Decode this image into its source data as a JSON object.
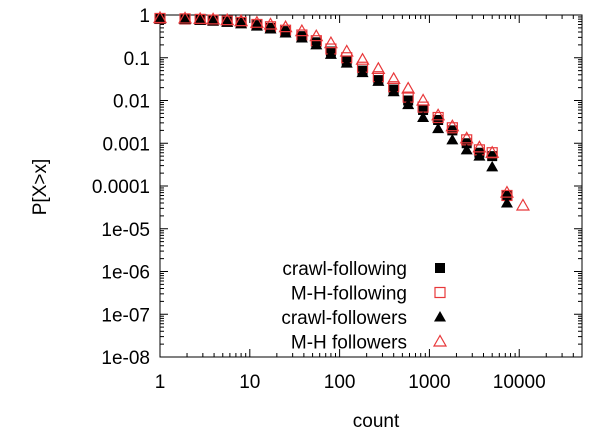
{
  "chart_data": {
    "type": "scatter",
    "xlabel": "count",
    "ylabel": "P[X>x]",
    "x_scale": "log",
    "y_scale": "log",
    "xlim": [
      1,
      50000
    ],
    "ylim": [
      1e-08,
      1
    ],
    "x_ticks": [
      {
        "value": 1,
        "label": "1"
      },
      {
        "value": 10,
        "label": "10"
      },
      {
        "value": 100,
        "label": "100"
      },
      {
        "value": 1000,
        "label": "1000"
      },
      {
        "value": 10000,
        "label": "10000"
      }
    ],
    "y_ticks": [
      {
        "value": 1,
        "label": "1"
      },
      {
        "value": 0.1,
        "label": "0.1"
      },
      {
        "value": 0.01,
        "label": "0.01"
      },
      {
        "value": 0.001,
        "label": "0.001"
      },
      {
        "value": 0.0001,
        "label": "0.0001"
      },
      {
        "value": 1e-05,
        "label": "1e-05"
      },
      {
        "value": 1e-06,
        "label": "1e-06"
      },
      {
        "value": 1e-07,
        "label": "1e-07"
      },
      {
        "value": 1e-08,
        "label": "1e-08"
      }
    ],
    "legend_position": "bottom-right",
    "series": [
      {
        "name": "crawl-following",
        "marker": "filled-square",
        "color": "#000000",
        "x": [
          1,
          1.9,
          2.8,
          3.9,
          5.6,
          8,
          12,
          17,
          25,
          38,
          55,
          80,
          120,
          180,
          270,
          400,
          580,
          850,
          1250,
          1800,
          2600,
          3600,
          5000,
          7300
        ],
        "y": [
          0.82,
          0.8,
          0.77,
          0.74,
          0.7,
          0.65,
          0.58,
          0.5,
          0.42,
          0.32,
          0.23,
          0.14,
          0.085,
          0.05,
          0.03,
          0.018,
          0.01,
          0.006,
          0.0035,
          0.002,
          0.001,
          0.0006,
          0.0005,
          6e-05
        ]
      },
      {
        "name": "M-H-following",
        "marker": "open-square",
        "color": "#e8383a",
        "x": [
          1,
          1.9,
          2.8,
          3.9,
          5.6,
          8,
          12,
          17,
          25,
          38,
          55,
          80,
          120,
          180,
          270,
          400,
          580,
          850,
          1250,
          1800,
          2600,
          3600,
          5000,
          7300
        ],
        "y": [
          0.83,
          0.81,
          0.79,
          0.76,
          0.72,
          0.67,
          0.6,
          0.53,
          0.44,
          0.34,
          0.25,
          0.16,
          0.1,
          0.06,
          0.036,
          0.021,
          0.012,
          0.007,
          0.004,
          0.0023,
          0.0012,
          0.0007,
          0.0006,
          6e-05
        ]
      },
      {
        "name": "crawl-followers",
        "marker": "filled-triangle",
        "color": "#000000",
        "x": [
          1,
          1.9,
          2.8,
          3.9,
          5.6,
          8,
          12,
          17,
          25,
          38,
          55,
          80,
          120,
          180,
          270,
          400,
          580,
          850,
          1250,
          1800,
          2600,
          3600,
          5000,
          7300
        ],
        "y": [
          0.8,
          0.78,
          0.75,
          0.72,
          0.67,
          0.62,
          0.55,
          0.47,
          0.38,
          0.29,
          0.2,
          0.12,
          0.075,
          0.045,
          0.028,
          0.016,
          0.008,
          0.004,
          0.0022,
          0.0012,
          0.0007,
          0.0005,
          0.00028,
          4e-05
        ]
      },
      {
        "name": "M-H followers",
        "marker": "open-triangle",
        "color": "#e8383a",
        "x": [
          1,
          1.9,
          2.8,
          3.9,
          5.6,
          8,
          12,
          17,
          25,
          38,
          55,
          80,
          120,
          180,
          270,
          400,
          580,
          850,
          1250,
          1800,
          2600,
          3600,
          5000,
          7300,
          11000
        ],
        "y": [
          0.85,
          0.83,
          0.81,
          0.79,
          0.76,
          0.72,
          0.66,
          0.6,
          0.52,
          0.42,
          0.32,
          0.22,
          0.14,
          0.09,
          0.055,
          0.032,
          0.019,
          0.01,
          0.0045,
          0.0025,
          0.0013,
          0.0008,
          0.0006,
          7e-05,
          3.5e-05
        ]
      }
    ]
  }
}
